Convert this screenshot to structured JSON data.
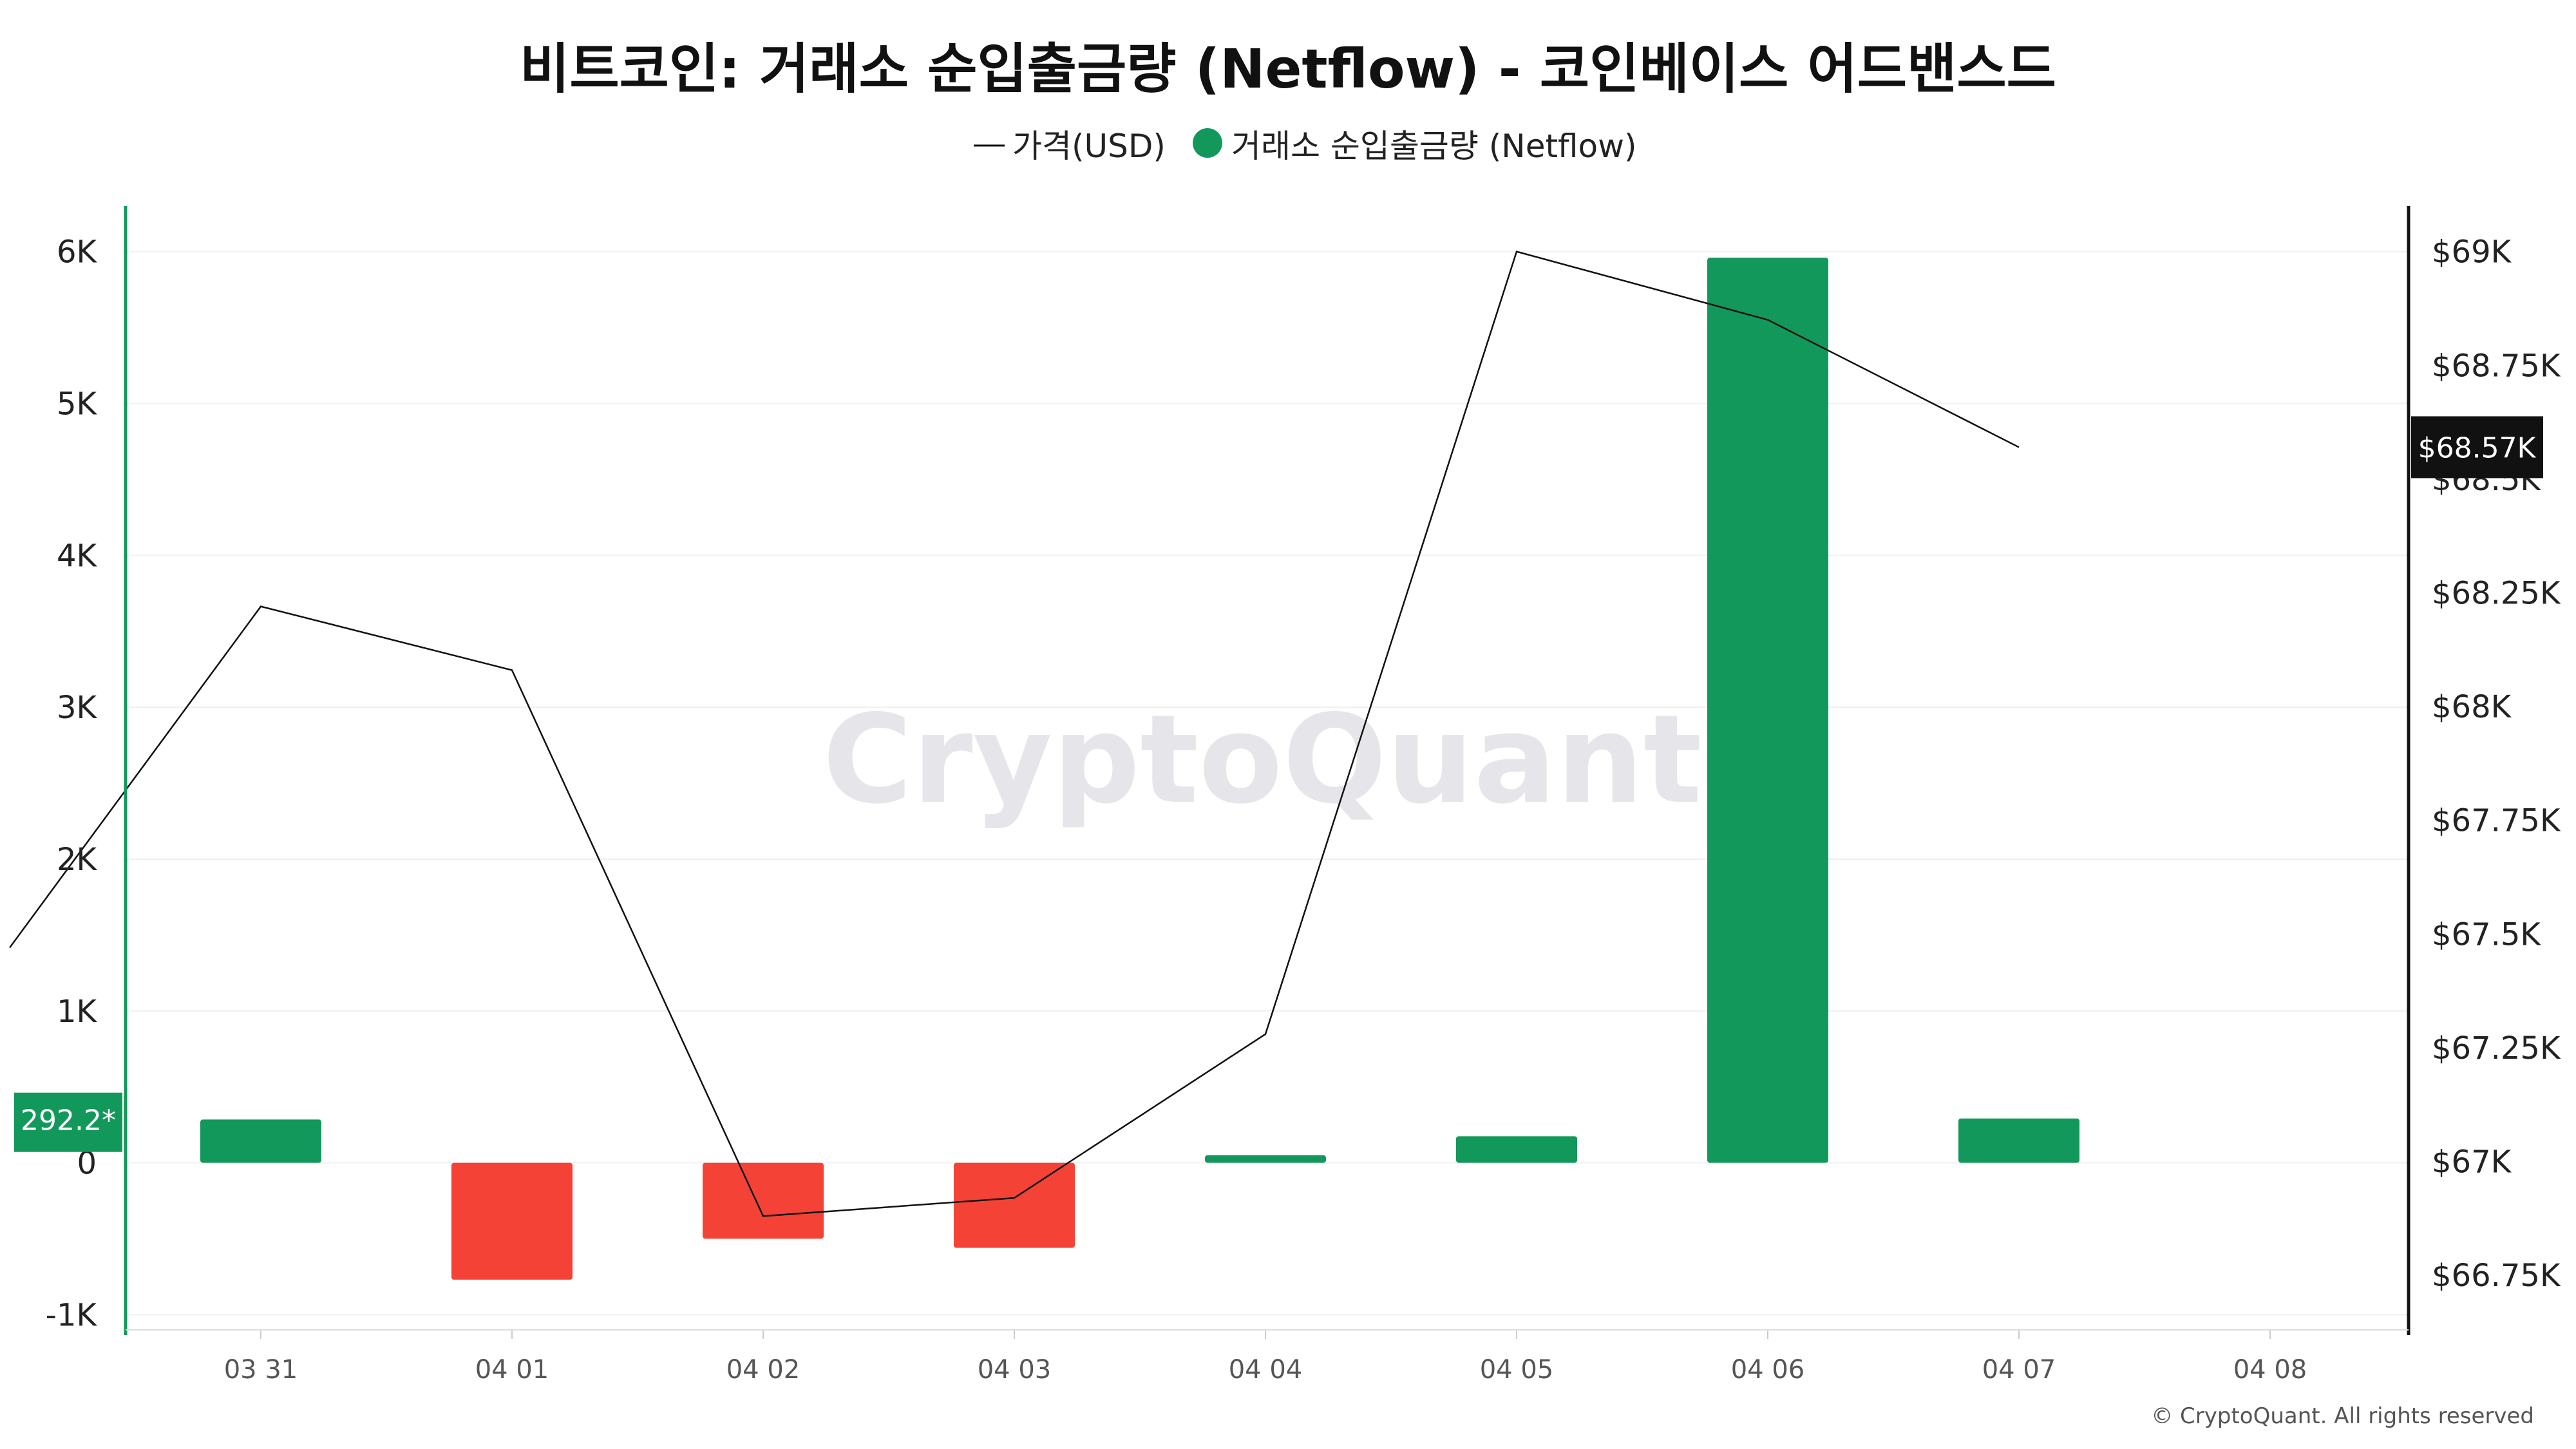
{
  "title": "비트코인: 거래소 순입출금량 (Netflow) - 코인베이스 어드밴스드",
  "legend": {
    "price_label": "가격(USD)",
    "netflow_label": "거래소 순입출금량 (Netflow)"
  },
  "watermark": "CryptoQuant",
  "copyright": "© CryptoQuant. All rights reserved",
  "colors": {
    "positive": "#13985b",
    "negative": "#f44336",
    "line": "#111111",
    "left_axis": "#13985b",
    "right_axis": "#111111",
    "grid": "#f0f0f0"
  },
  "chart_data": {
    "type": "bar",
    "categories": [
      "03 31",
      "04 01",
      "04 02",
      "04 03",
      "04 04",
      "04 05",
      "04 06",
      "04 07",
      "04 08"
    ],
    "series": [
      {
        "name": "거래소 순입출금량 (Netflow)",
        "type": "bar",
        "axis": "left",
        "values": [
          285,
          -770,
          -500,
          -560,
          50,
          175,
          5960,
          292.2,
          null
        ]
      },
      {
        "name": "가격(USD)",
        "type": "line",
        "axis": "right",
        "x_start": "03 30",
        "values": [
          67470,
          68220,
          68080,
          66880,
          66920,
          67280,
          69000,
          68850,
          68570
        ]
      }
    ],
    "left_axis": {
      "ticks": [
        "6K",
        "5K",
        "4K",
        "3K",
        "2K",
        "1K",
        "0",
        "-1K"
      ],
      "tick_values": [
        6000,
        5000,
        4000,
        3000,
        2000,
        1000,
        0,
        -1000
      ],
      "ylim": [
        -1100,
        6300
      ]
    },
    "right_axis": {
      "ticks": [
        "$69K",
        "$68.75K",
        "$68.5K",
        "$68.25K",
        "$68K",
        "$67.75K",
        "$67.5K",
        "$67.25K",
        "$67K",
        "$66.75K"
      ],
      "tick_values": [
        69000,
        68750,
        68500,
        68250,
        68000,
        67750,
        67500,
        67250,
        67000,
        66750
      ],
      "ylim": [
        66630,
        69100
      ]
    },
    "last_value_left": "292.2*",
    "last_value_right": "$68.57K",
    "legend_position": "top-center",
    "grid": true
  }
}
